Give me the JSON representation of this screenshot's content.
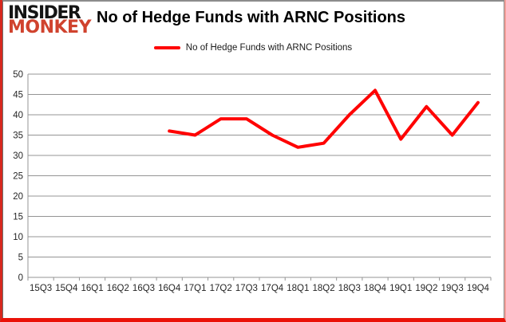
{
  "brand": {
    "line1": "INSIDER",
    "line2": "MONKEY",
    "line1_color": "#141414",
    "line2_color": "#d0432e"
  },
  "header": {
    "title": "No of Hedge Funds with ARNC Positions"
  },
  "legend": {
    "label": "No of Hedge Funds with ARNC Positions",
    "swatch_color": "#ff0000"
  },
  "chart_data": {
    "type": "line",
    "title": "No of Hedge Funds with ARNC Positions",
    "categories": [
      "15Q3",
      "15Q4",
      "16Q1",
      "16Q2",
      "16Q3",
      "16Q4",
      "17Q1",
      "17Q2",
      "17Q3",
      "17Q4",
      "18Q1",
      "18Q2",
      "18Q3",
      "18Q4",
      "19Q1",
      "19Q2",
      "19Q3",
      "19Q4"
    ],
    "series": [
      {
        "name": "No of Hedge Funds with ARNC Positions",
        "color": "#ff0000",
        "values": [
          null,
          null,
          null,
          null,
          null,
          36,
          35,
          39,
          39,
          35,
          32,
          33,
          40,
          46,
          34,
          42,
          35,
          43
        ]
      }
    ],
    "ylim": [
      0,
      50
    ],
    "ytick_step": 5,
    "grid": true,
    "grid_color": "#949494",
    "tick_label_color": "#262626",
    "legend_position": "top"
  }
}
